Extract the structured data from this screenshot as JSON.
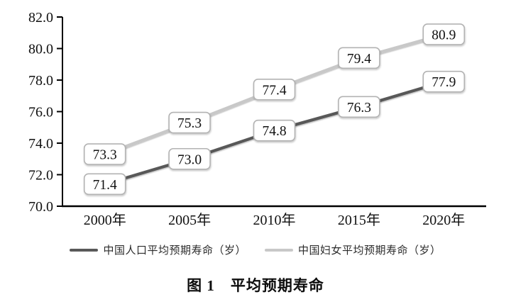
{
  "caption": {
    "text": "图 1　平均预期寿命"
  },
  "chart_data": {
    "type": "line",
    "title": "图 1　平均预期寿命",
    "categories": [
      "2000年",
      "2005年",
      "2010年",
      "2015年",
      "2020年"
    ],
    "series": [
      {
        "name": "中国人口平均预期寿命（岁）",
        "values": [
          71.4,
          73.0,
          74.8,
          76.3,
          77.9
        ],
        "color": "#595959"
      },
      {
        "name": "中国妇女平均预期寿命（岁）",
        "values": [
          73.3,
          75.3,
          77.4,
          79.4,
          80.9
        ],
        "color": "#c8c8c8"
      }
    ],
    "xlabel": "",
    "ylabel": "",
    "ylim": [
      70.0,
      82.0
    ],
    "ytick_step": 2.0,
    "ytick_decimals": 1,
    "grid": false,
    "legend_position": "bottom",
    "data_labels": true,
    "colors": {
      "axis": "#000000",
      "tick_text": "#111111",
      "label_box_fill": "#ffffff",
      "label_box_border": "#b3b3b3",
      "label_text": "#111111"
    }
  }
}
